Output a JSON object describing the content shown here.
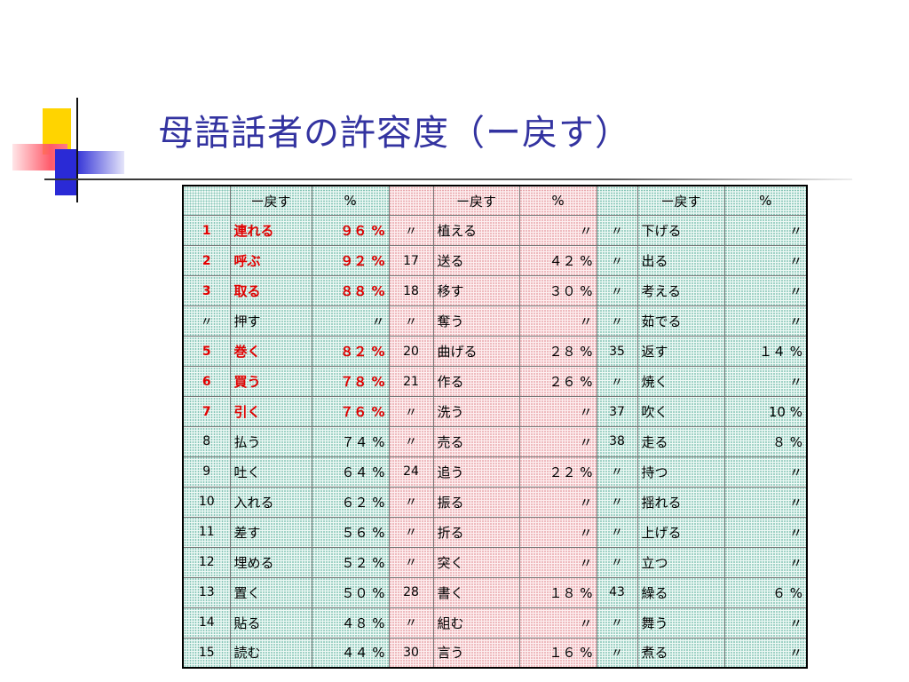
{
  "title": "母語話者の許容度（ー戻す）",
  "table": {
    "headers": [
      "ー戻す",
      "%",
      "ー戻す",
      "%",
      "ー戻す",
      "%"
    ],
    "rows": [
      [
        {
          "n": "1",
          "v": "連れる",
          "p": "９６ %",
          "red": true
        },
        {
          "n": "〃",
          "v": "植える",
          "p": "〃"
        },
        {
          "n": "〃",
          "v": "下げる",
          "p": "〃"
        }
      ],
      [
        {
          "n": "2",
          "v": "呼ぶ",
          "p": "９２ %",
          "red": true
        },
        {
          "n": "17",
          "v": "送る",
          "p": "４２ %"
        },
        {
          "n": "〃",
          "v": "出る",
          "p": "〃"
        }
      ],
      [
        {
          "n": "3",
          "v": "取る",
          "p": "８８ %",
          "red": true
        },
        {
          "n": "18",
          "v": "移す",
          "p": "３０ %"
        },
        {
          "n": "〃",
          "v": "考える",
          "p": "〃"
        }
      ],
      [
        {
          "n": "〃",
          "v": "押す",
          "p": "〃"
        },
        {
          "n": "〃",
          "v": "奪う",
          "p": "〃"
        },
        {
          "n": "〃",
          "v": "茹でる",
          "p": "〃"
        }
      ],
      [
        {
          "n": "5",
          "v": "巻く",
          "p": "８２ %",
          "red": true
        },
        {
          "n": "20",
          "v": "曲げる",
          "p": "２８ %"
        },
        {
          "n": "35",
          "v": "返す",
          "p": "１４ %"
        }
      ],
      [
        {
          "n": "6",
          "v": "買う",
          "p": "７８ %",
          "red": true
        },
        {
          "n": "21",
          "v": "作る",
          "p": "２６ %"
        },
        {
          "n": "〃",
          "v": "焼く",
          "p": "〃"
        }
      ],
      [
        {
          "n": "7",
          "v": "引く",
          "p": "７６ %",
          "red": true
        },
        {
          "n": "〃",
          "v": "洗う",
          "p": "〃"
        },
        {
          "n": "37",
          "v": "吹く",
          "p": "10 %"
        }
      ],
      [
        {
          "n": "8",
          "v": "払う",
          "p": "７４ %"
        },
        {
          "n": "〃",
          "v": "売る",
          "p": "〃"
        },
        {
          "n": "38",
          "v": "走る",
          "p": "８ %"
        }
      ],
      [
        {
          "n": "9",
          "v": "吐く",
          "p": "６４ %"
        },
        {
          "n": "24",
          "v": "追う",
          "p": "２２ %"
        },
        {
          "n": "〃",
          "v": "持つ",
          "p": "〃"
        }
      ],
      [
        {
          "n": "10",
          "v": "入れる",
          "p": "６２ %"
        },
        {
          "n": "〃",
          "v": "振る",
          "p": "〃"
        },
        {
          "n": "〃",
          "v": "揺れる",
          "p": "〃"
        }
      ],
      [
        {
          "n": "11",
          "v": "差す",
          "p": "５６ %"
        },
        {
          "n": "〃",
          "v": "折る",
          "p": "〃"
        },
        {
          "n": "〃",
          "v": "上げる",
          "p": "〃"
        }
      ],
      [
        {
          "n": "12",
          "v": "埋める",
          "p": "５２ %"
        },
        {
          "n": "〃",
          "v": "突く",
          "p": "〃"
        },
        {
          "n": "〃",
          "v": "立つ",
          "p": "〃"
        }
      ],
      [
        {
          "n": "13",
          "v": "置く",
          "p": "５０ %"
        },
        {
          "n": "28",
          "v": "書く",
          "p": "１８ %"
        },
        {
          "n": "43",
          "v": "繰る",
          "p": "６ %"
        }
      ],
      [
        {
          "n": "14",
          "v": "貼る",
          "p": "４８ %"
        },
        {
          "n": "〃",
          "v": "組む",
          "p": "〃"
        },
        {
          "n": "〃",
          "v": "舞う",
          "p": "〃"
        }
      ],
      [
        {
          "n": "15",
          "v": "読む",
          "p": "４４ %"
        },
        {
          "n": "30",
          "v": "言う",
          "p": "１６ %"
        },
        {
          "n": "〃",
          "v": "煮る",
          "p": "〃"
        }
      ]
    ]
  },
  "colors": {
    "title": "#3333a0",
    "highlight": "#e00000"
  }
}
